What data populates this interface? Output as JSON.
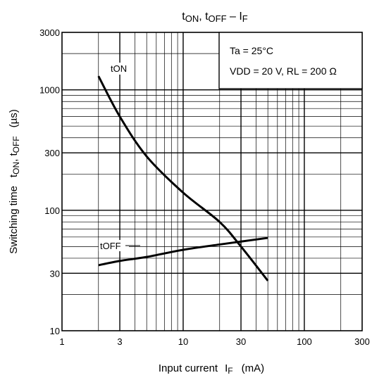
{
  "chart_data": {
    "type": "line",
    "title": {
      "t_main": "t",
      "on_sub": "ON",
      "sep": ", t",
      "off_sub": "OFF",
      "dash": " – I",
      "f_sub": "F"
    },
    "xlabel": {
      "main": "Input current",
      "sym": "I",
      "sub": "F",
      "unit": "(mA)"
    },
    "ylabel": {
      "main": "Switching time",
      "t1": "t",
      "on_sub": "ON",
      "sep": ", t",
      "off_sub": "OFF",
      "unit": "(µs)"
    },
    "x_scale": "log",
    "y_scale": "log",
    "xlim": [
      1,
      300
    ],
    "ylim": [
      10,
      3000
    ],
    "x_ticks": [
      1,
      3,
      10,
      30,
      100,
      300
    ],
    "x_tick_labels": [
      "1",
      "3",
      "10",
      "30",
      "100",
      "300"
    ],
    "y_ticks": [
      10,
      30,
      100,
      300,
      1000,
      3000
    ],
    "y_tick_labels": [
      "10",
      "30",
      "100",
      "300",
      "1000",
      "3000"
    ],
    "grid": true,
    "conditions": [
      "Ta = 25°C",
      "VDD = 20 V, RL = 200 Ω"
    ],
    "series": [
      {
        "name": "tON",
        "x": [
          2,
          3,
          5,
          10,
          20,
          30,
          50
        ],
        "y": [
          1300,
          600,
          280,
          140,
          80,
          50,
          26
        ]
      },
      {
        "name": "tOFF",
        "x": [
          2,
          3,
          5,
          10,
          20,
          30,
          50
        ],
        "y": [
          35,
          38,
          41,
          47,
          52,
          55,
          59
        ]
      }
    ]
  }
}
